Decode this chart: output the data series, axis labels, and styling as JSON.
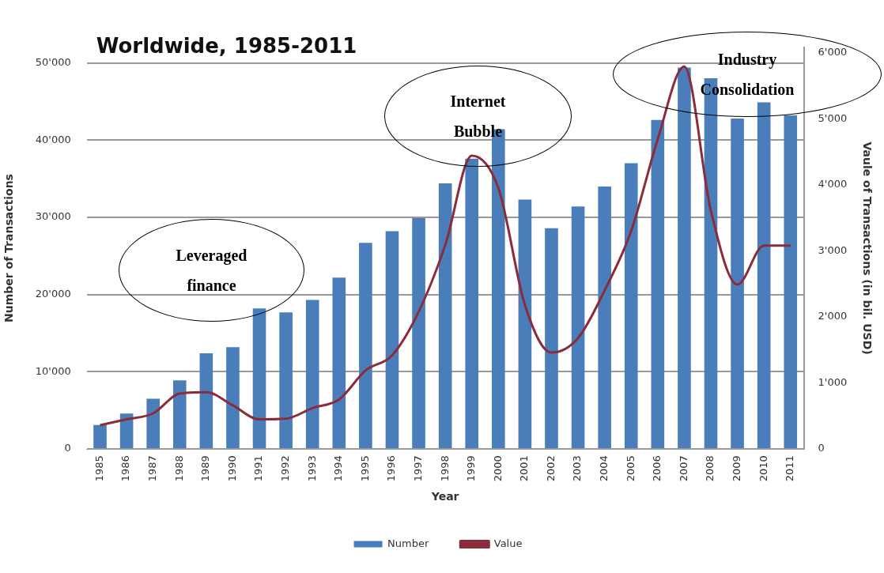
{
  "chart_data": {
    "type": "bar",
    "title": "Worldwide, 1985-2011",
    "xlabel": "Year",
    "ylabel": "Number of Transactions",
    "y2label": "Vaule of Transactions (in bil. USD)",
    "categories": [
      "1985",
      "1986",
      "1987",
      "1988",
      "1989",
      "1990",
      "1991",
      "1992",
      "1993",
      "1994",
      "1995",
      "1996",
      "1997",
      "1998",
      "1999",
      "2000",
      "2001",
      "2002",
      "2003",
      "2004",
      "2005",
      "2006",
      "2007",
      "2008",
      "2009",
      "2010",
      "2011"
    ],
    "series": [
      {
        "name": "Number",
        "color": "#4a7ebb",
        "values": [
          3100,
          4600,
          6500,
          8900,
          12400,
          13200,
          18200,
          17700,
          19300,
          22200,
          26700,
          28200,
          29900,
          34400,
          37600,
          41400,
          32300,
          28600,
          31400,
          34000,
          37000,
          42600,
          49400,
          48000,
          42800,
          44900,
          43200
        ]
      },
      {
        "name": "Value",
        "type": "line",
        "axis": "y2",
        "color": "#8b2c3a",
        "values": [
          360,
          450,
          540,
          840,
          860,
          660,
          450,
          460,
          620,
          750,
          1190,
          1420,
          2080,
          3090,
          4440,
          3950,
          2180,
          1460,
          1680,
          2400,
          3300,
          4690,
          5790,
          3610,
          2490,
          3080,
          3080
        ]
      }
    ],
    "ylim": [
      0,
      52000
    ],
    "yticks": [
      {
        "value": 0,
        "label": "0"
      },
      {
        "value": 10000,
        "label": "10'000"
      },
      {
        "value": 20000,
        "label": "20'000"
      },
      {
        "value": 30000,
        "label": "30'000"
      },
      {
        "value": 40000,
        "label": "40'000"
      },
      {
        "value": 50000,
        "label": "50'000"
      }
    ],
    "y2lim": [
      0,
      6080
    ],
    "y2ticks": [
      {
        "value": 0,
        "label": "0"
      },
      {
        "value": 1000,
        "label": "1'000"
      },
      {
        "value": 2000,
        "label": "2'000"
      },
      {
        "value": 3000,
        "label": "3'000"
      },
      {
        "value": 4000,
        "label": "4'000"
      },
      {
        "value": 5000,
        "label": "5'000"
      },
      {
        "value": 6000,
        "label": "6'000"
      }
    ],
    "grid": "y",
    "legend": "bottom",
    "marker": "none",
    "line_style": "solid",
    "annotations": [
      "Leveraged\nfinance",
      "Internet\nBubble",
      "Industry\nConsolidation"
    ]
  }
}
